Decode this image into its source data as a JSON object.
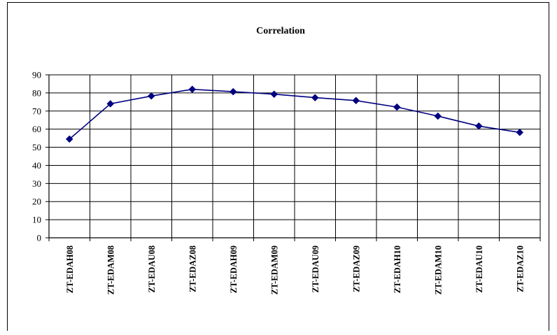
{
  "chart_data": {
    "type": "line",
    "title": "Correlation",
    "xlabel": "",
    "ylabel": "",
    "categories": [
      "ZT-EDAH08",
      "ZT-EDAM08",
      "ZT-EDAU08",
      "ZT-EDAZ08",
      "ZT-EDAH09",
      "ZT-EDAM09",
      "ZT-EDAU09",
      "ZT-EDAZ09",
      "ZT-EDAH10",
      "ZT-EDAM10",
      "ZT-EDAU10",
      "ZT-EDAZ10"
    ],
    "series": [
      {
        "values": [
          54.5,
          74,
          78.3,
          82,
          80.7,
          79.3,
          77.4,
          75.8,
          72.2,
          67.2,
          61.7,
          58.2
        ],
        "color": "#000080"
      }
    ],
    "ylim": [
      0,
      90
    ],
    "yticks": [
      0,
      10,
      20,
      30,
      40,
      50,
      60,
      70,
      80,
      90
    ],
    "grid": true,
    "legend": "none",
    "marker": "diamond"
  }
}
